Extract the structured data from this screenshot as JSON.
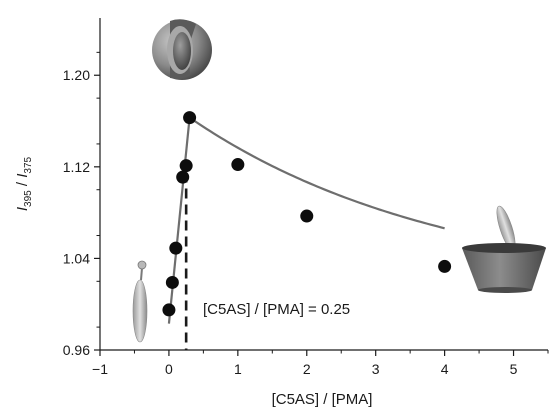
{
  "chart_data": {
    "type": "scatter",
    "title": "",
    "xlabel": "[C5AS] / [PMA]",
    "ylabel": "I395 / I375",
    "ylabel_parts": {
      "main1": "I",
      "sub1": "395",
      "sep": " / ",
      "main2": "I",
      "sub2": "375"
    },
    "xlim": [
      -1,
      5.5
    ],
    "ylim": [
      0.96,
      1.25
    ],
    "x_ticks": [
      -1,
      0,
      1,
      2,
      3,
      4,
      5
    ],
    "x_tick_labels": [
      "−1",
      "0",
      "1",
      "2",
      "3",
      "4",
      "5"
    ],
    "y_ticks": [
      0.96,
      1.04,
      1.12,
      1.2
    ],
    "y_tick_labels": [
      "0.96",
      "1.04",
      "1.12",
      "1.20"
    ],
    "series": [
      {
        "x": [
          0.0,
          0.05,
          0.1,
          0.2,
          0.25,
          0.3,
          1.0,
          2.0,
          4.0
        ],
        "y": [
          0.995,
          1.019,
          1.049,
          1.111,
          1.121,
          1.163,
          1.122,
          1.077,
          1.033
        ]
      }
    ],
    "annotations": [
      {
        "text": "[C5AS] / [PMA] = 0.25",
        "x": 0.25
      }
    ],
    "grid": false,
    "legend": "none"
  },
  "colors": {
    "points": "#0d0d0d",
    "fit_line": "#6e6e6e",
    "axis": "#1a1a1a",
    "dash_line": "#1a1a1a"
  },
  "icons": [
    "cut-sphere-micelle-icon",
    "amphiphile-rod-icon",
    "bowl-with-rod-icon"
  ]
}
